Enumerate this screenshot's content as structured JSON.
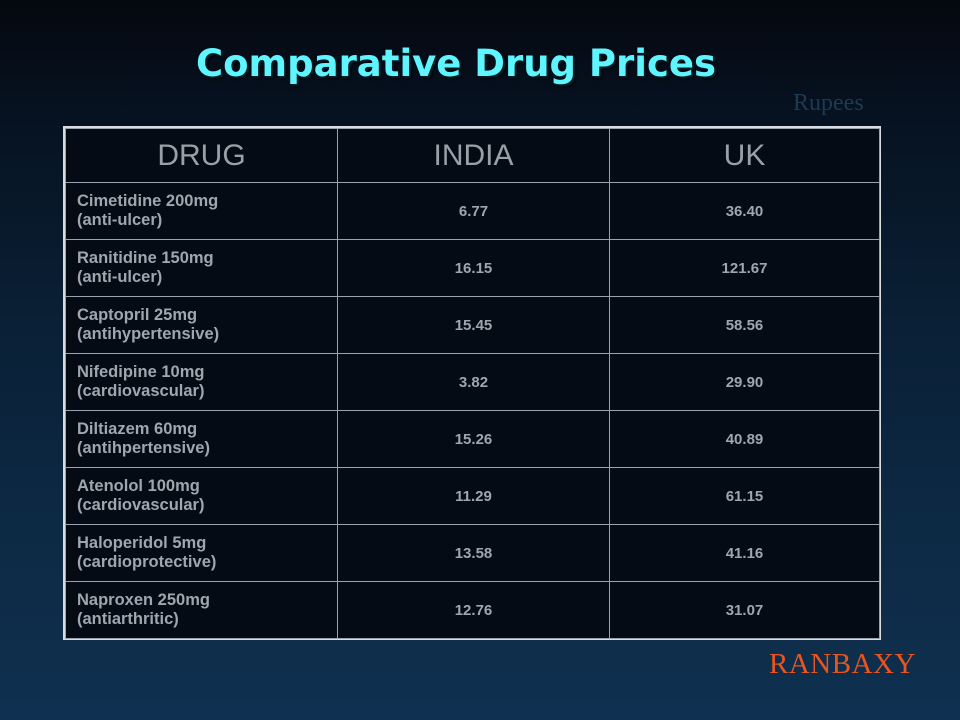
{
  "title": "Comparative Drug Prices",
  "unit_label": "Rupees",
  "table": {
    "headers": [
      "DRUG",
      "INDIA",
      "UK"
    ],
    "rows": [
      {
        "drug": "Cimetidine 200mg",
        "category": "(anti-ulcer)",
        "india": "6.77",
        "uk": "36.40"
      },
      {
        "drug": "Ranitidine 150mg",
        "category": "(anti-ulcer)",
        "india": "16.15",
        "uk": "121.67"
      },
      {
        "drug": "Captopril 25mg",
        "category": "(antihypertensive)",
        "india": "15.45",
        "uk": "58.56"
      },
      {
        "drug": "Nifedipine 10mg",
        "category": "(cardiovascular)",
        "india": "3.82",
        "uk": "29.90"
      },
      {
        "drug": "Diltiazem 60mg",
        "category": "(antihpertensive)",
        "india": "15.26",
        "uk": "40.89"
      },
      {
        "drug": "Atenolol 100mg",
        "category": "(cardiovascular)",
        "india": "11.29",
        "uk": "61.15"
      },
      {
        "drug": "Haloperidol 5mg",
        "category": "(cardioprotective)",
        "india": "13.58",
        "uk": "41.16"
      },
      {
        "drug": "Naproxen 250mg",
        "category": "(antiarthritic)",
        "india": "12.76",
        "uk": "31.07"
      }
    ]
  },
  "logo_text": "RANBAXY",
  "colors": {
    "title": "#5ff5ff",
    "logo": "#e8551e",
    "table_text": "#9fa6ae",
    "background": "#0a2036"
  }
}
